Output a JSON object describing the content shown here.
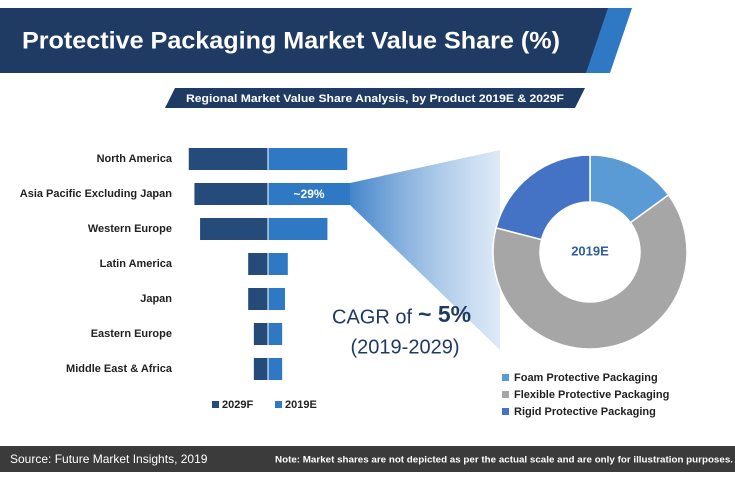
{
  "header": {
    "title": "Protective Packaging Market Value Share (%)",
    "subtitle": "Regional Market Value Share Analysis, by Product  2019E & 2029F"
  },
  "chart_data": [
    {
      "type": "bar",
      "orientation": "diverging",
      "categories": [
        "North America",
        "Asia Pacific Excluding Japan",
        "Western Europe",
        "Latin America",
        "Japan",
        "Eastern Europe",
        "Middle East & Africa"
      ],
      "series": [
        {
          "name": "2029F",
          "color": "#254b7a",
          "values": [
            28,
            26,
            24,
            7,
            7,
            5,
            5
          ]
        },
        {
          "name": "2019E",
          "color": "#2f78c4",
          "values": [
            28,
            29,
            21,
            7,
            6,
            5,
            5
          ],
          "value_labels": [
            null,
            "~29%",
            null,
            null,
            null,
            null,
            null
          ]
        }
      ],
      "annotations": [
        "CAGR of",
        "~ 5%",
        "(2019-2029)"
      ]
    },
    {
      "type": "donut",
      "center_label": "2019E",
      "categories": [
        "Foam Protective Packaging",
        "Flexible Protective Packaging",
        "Rigid Protective Packaging"
      ],
      "values": [
        15,
        64,
        21
      ],
      "colors": [
        "#5b9bd5",
        "#a6a6a6",
        "#4472c4"
      ]
    }
  ],
  "footer": {
    "source": "Source: Future Market Insights, 2019",
    "note": "Note: Market shares are not depicted as per the actual scale and are only for illustration purposes."
  }
}
